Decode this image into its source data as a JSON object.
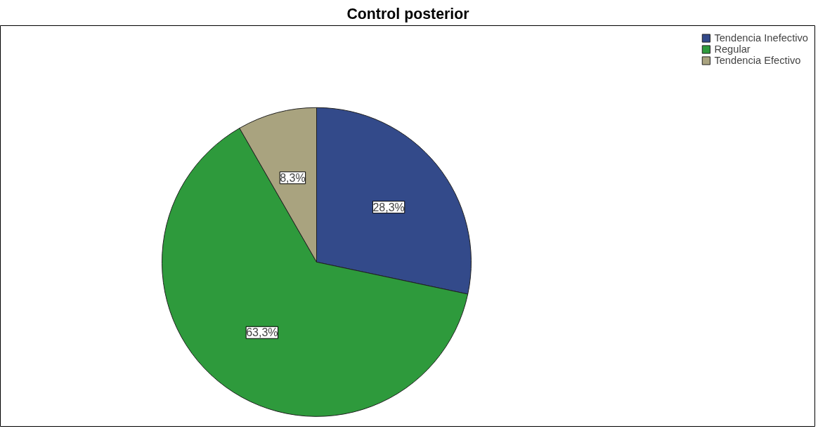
{
  "chart_data": {
    "type": "pie",
    "title": "Control posterior",
    "categories": [
      "Tendencia Inefectivo",
      "Regular",
      "Tendencia Efectivo"
    ],
    "values": [
      28.3,
      63.3,
      8.3
    ],
    "colors": [
      "#334a8a",
      "#2e9a3c",
      "#a9a37f"
    ],
    "value_labels": [
      "28,3%",
      "63,3%",
      "8,3%"
    ],
    "legend": "top right"
  }
}
